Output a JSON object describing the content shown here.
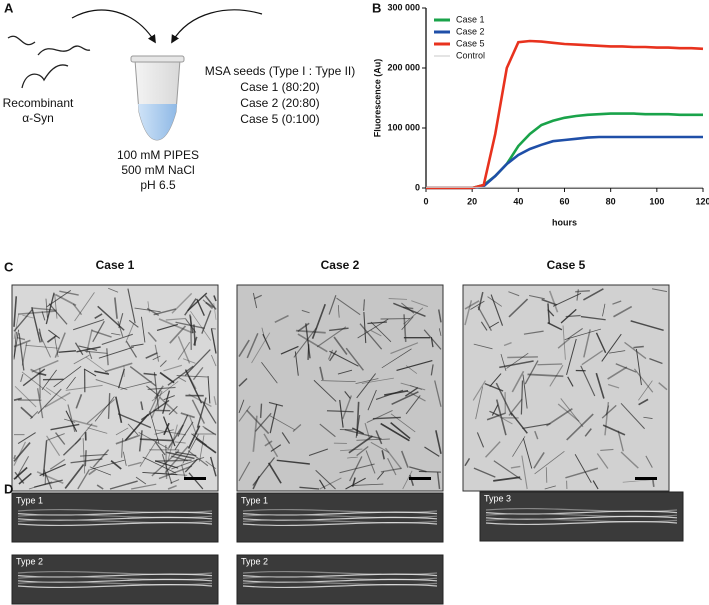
{
  "panels": {
    "a": {
      "label": "A",
      "protein": [
        "Recombinant",
        "α-Syn"
      ],
      "seeds_title": "MSA seeds (Type I : Type II)",
      "cases": [
        "Case 1 (80:20)",
        "Case 2 (20:80)",
        "Case 5 (0:100)"
      ],
      "buffer": [
        "100 mM PIPES",
        "500 mM NaCl",
        "pH 6.5"
      ]
    },
    "b": {
      "label": "B"
    },
    "c": {
      "label": "C",
      "titles": [
        "Case 1",
        "Case 2",
        "Case 5"
      ]
    },
    "d": {
      "label": "D",
      "row1": [
        "Type 1",
        "Type 1",
        "Type 3"
      ],
      "row2": [
        "Type 2",
        "Type 2"
      ]
    }
  },
  "chart_data": {
    "type": "line",
    "x_label": "hours",
    "y_label": "Fluorescence (Au)",
    "x": [
      0,
      5,
      10,
      15,
      20,
      25,
      30,
      35,
      40,
      45,
      50,
      55,
      60,
      65,
      70,
      75,
      80,
      85,
      90,
      95,
      100,
      105,
      110,
      115,
      120
    ],
    "series": [
      {
        "name": "Case 1",
        "color": "#1aa34a",
        "values": [
          0,
          0,
          0,
          0,
          0,
          5000,
          20000,
          40000,
          70000,
          90000,
          105000,
          112000,
          117000,
          120000,
          122000,
          123000,
          124000,
          124000,
          124000,
          123000,
          123000,
          123000,
          122000,
          122000,
          122000
        ]
      },
      {
        "name": "Case 2",
        "color": "#1f4fa8",
        "values": [
          0,
          0,
          0,
          0,
          0,
          3000,
          20000,
          40000,
          55000,
          65000,
          72000,
          78000,
          80000,
          82000,
          84000,
          85000,
          85000,
          85000,
          85000,
          85000,
          85000,
          85000,
          85000,
          85000,
          85000
        ]
      },
      {
        "name": "Case 5",
        "color": "#e8321e",
        "values": [
          0,
          0,
          0,
          0,
          0,
          5000,
          90000,
          200000,
          243000,
          245000,
          244000,
          242000,
          240000,
          239000,
          238000,
          237000,
          236000,
          236000,
          235000,
          235000,
          234000,
          234000,
          233000,
          233000,
          232000
        ]
      },
      {
        "name": "Control",
        "color": "#c8c8c8",
        "values": [
          1000,
          1000,
          1000,
          1000,
          1000,
          1000,
          1000,
          1000,
          1000,
          1000,
          1000,
          1000,
          1000,
          1000,
          1000,
          1000,
          1000,
          1000,
          1000,
          1000,
          1000,
          1000,
          1000,
          1000,
          1000
        ]
      }
    ],
    "xlim": [
      0,
      120
    ],
    "xticks": [
      0,
      20,
      40,
      60,
      80,
      100,
      120
    ],
    "ylim": [
      0,
      300000
    ],
    "yticks": [
      {
        "value": 0,
        "label": "0"
      },
      {
        "value": 100000,
        "label": "100 000"
      },
      {
        "value": 200000,
        "label": "200 000"
      },
      {
        "value": 300000,
        "label": "300 000"
      }
    ],
    "legend": "upper-left"
  }
}
